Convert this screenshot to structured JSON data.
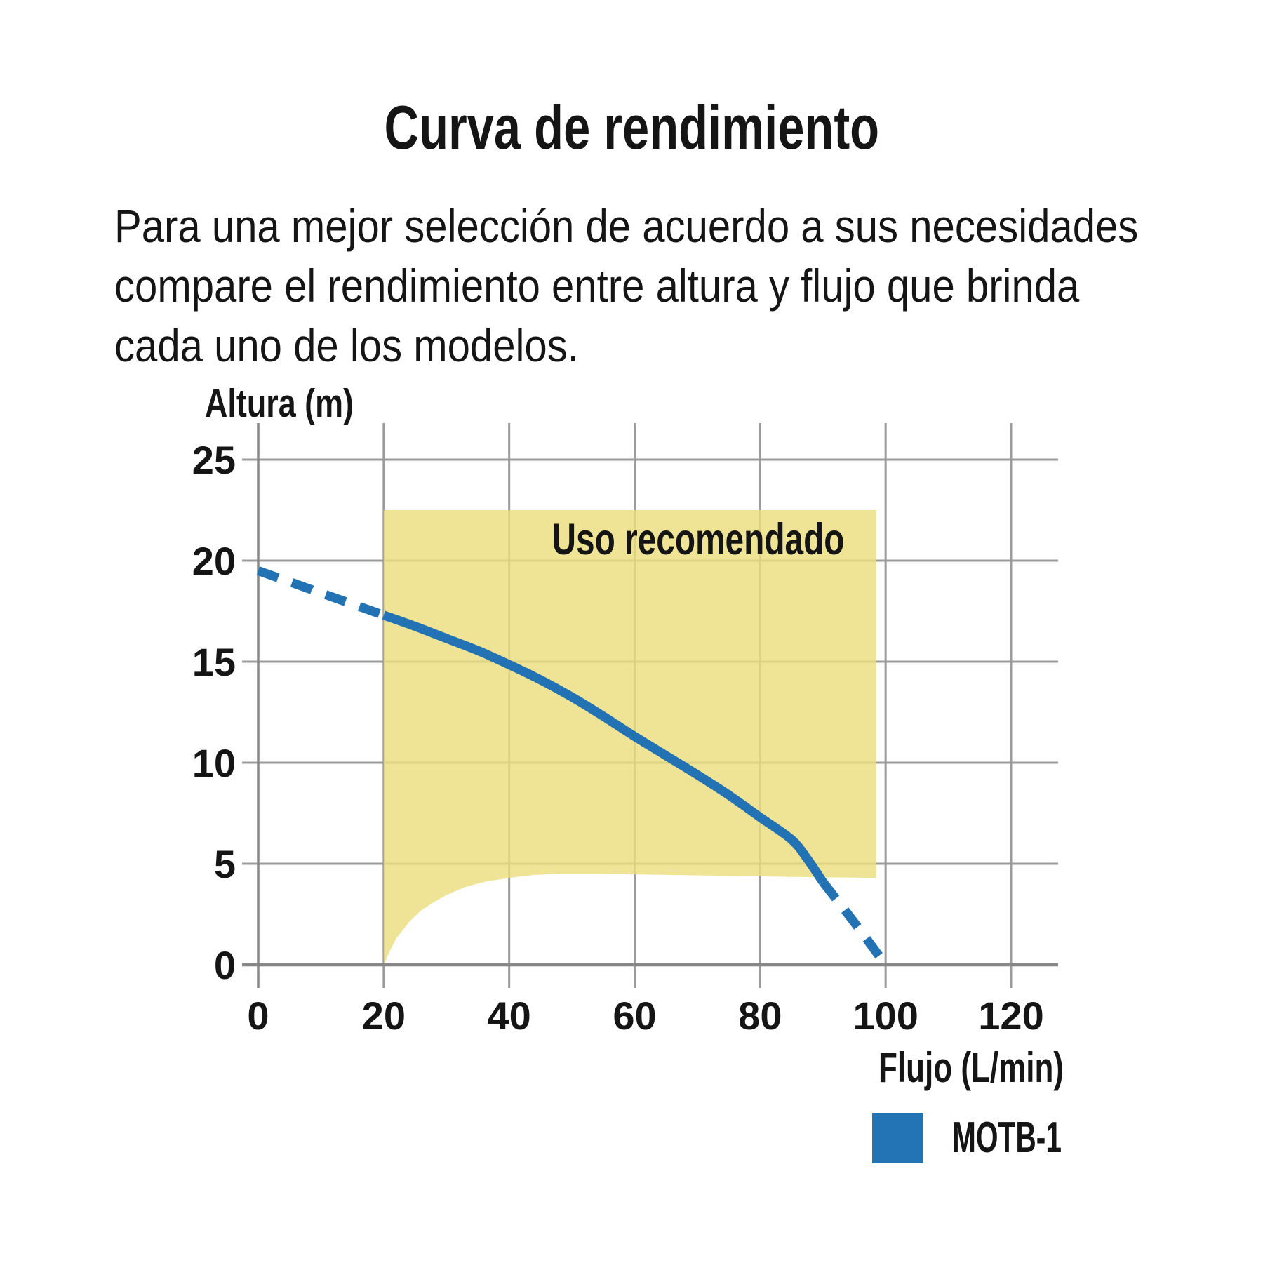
{
  "page": {
    "title": "Curva de rendimiento",
    "description_lines": [
      "Para una mejor selección de acuerdo a sus necesidades",
      "compare el rendimiento entre altura y flujo que brinda",
      "cada uno de los modelos."
    ]
  },
  "chart_data": {
    "type": "line",
    "title": "Curva de rendimiento",
    "xlabel": "Flujo (L/min)",
    "ylabel": "Altura (m)",
    "x_ticks": [
      0,
      20,
      40,
      60,
      80,
      100,
      120
    ],
    "y_ticks": [
      0,
      5,
      10,
      15,
      20,
      25
    ],
    "xlim": [
      0,
      127
    ],
    "ylim": [
      0,
      26.8
    ],
    "grid": true,
    "colors": {
      "curve": "#2272B4",
      "region_fill": "#EBDD7E",
      "grid_line": "#9B9B9B",
      "axis_line": "#878787",
      "legend_swatch": "#2374B5",
      "text": "#151515"
    },
    "region": {
      "label": "Uso recomendado",
      "x_range": [
        20,
        98.5
      ],
      "top": 22.5,
      "bottom_boundary": [
        [
          20,
          0
        ],
        [
          21,
          0.7
        ],
        [
          22,
          1.3
        ],
        [
          24,
          2.1
        ],
        [
          26,
          2.7
        ],
        [
          28,
          3.1
        ],
        [
          30,
          3.45
        ],
        [
          33,
          3.85
        ],
        [
          36,
          4.1
        ],
        [
          40,
          4.3
        ],
        [
          44,
          4.45
        ],
        [
          48,
          4.5
        ],
        [
          55,
          4.5
        ],
        [
          65,
          4.45
        ],
        [
          75,
          4.4
        ],
        [
          85,
          4.35
        ],
        [
          98.5,
          4.3
        ]
      ]
    },
    "series": [
      {
        "name": "MOTB-1",
        "color": "#2272B4",
        "segments": [
          {
            "style": "dashed",
            "points": [
              [
                0,
                19.5
              ],
              [
                5,
                18.95
              ],
              [
                10,
                18.4
              ],
              [
                15,
                17.85
              ],
              [
                20,
                17.3
              ]
            ]
          },
          {
            "style": "solid",
            "points": [
              [
                20,
                17.3
              ],
              [
                25,
                16.75
              ],
              [
                30,
                16.15
              ],
              [
                35,
                15.55
              ],
              [
                40,
                14.85
              ],
              [
                45,
                14.1
              ],
              [
                50,
                13.25
              ],
              [
                55,
                12.3
              ],
              [
                60,
                11.3
              ],
              [
                65,
                10.35
              ],
              [
                70,
                9.4
              ],
              [
                75,
                8.4
              ],
              [
                80,
                7.3
              ],
              [
                85,
                6.2
              ],
              [
                87.5,
                5.25
              ],
              [
                90,
                4.1
              ]
            ]
          },
          {
            "style": "dashed",
            "points": [
              [
                90,
                4.1
              ],
              [
                95,
                2.1
              ],
              [
                100,
                0
              ]
            ]
          }
        ]
      }
    ],
    "legend": [
      {
        "label": "MOTB-1",
        "color": "#2374B5"
      }
    ]
  }
}
